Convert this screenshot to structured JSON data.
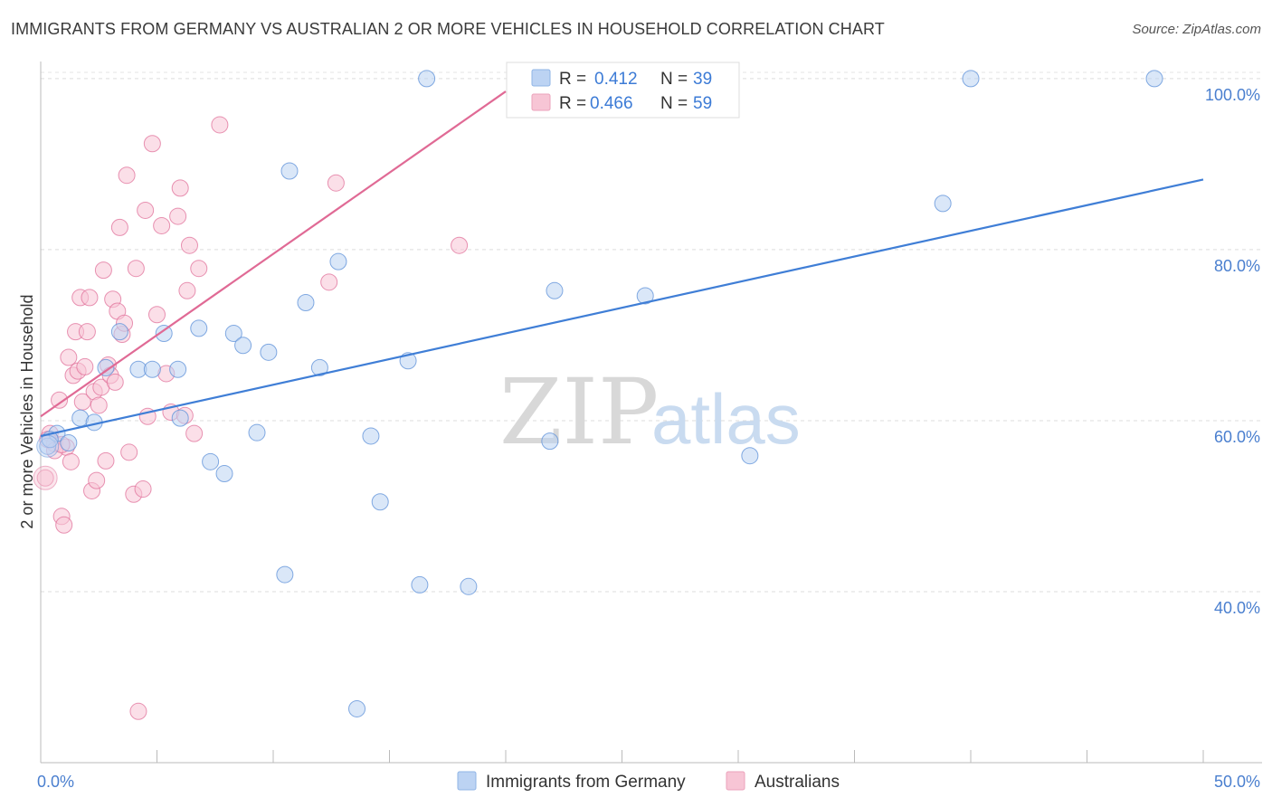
{
  "title": "IMMIGRANTS FROM GERMANY VS AUSTRALIAN 2 OR MORE VEHICLES IN HOUSEHOLD CORRELATION CHART",
  "source": "Source: ZipAtlas.com",
  "watermark": {
    "zip": "ZIP",
    "atlas": "atlas"
  },
  "colors": {
    "blue": "#5b8fd8",
    "blue_fill": "#bcd3f3",
    "pink": "#e0709a",
    "pink_fill": "#f7c5d5",
    "tick_text": "#4a7fcf"
  },
  "legend": {
    "items": [
      {
        "r_label": "R = ",
        "r_value": "0.412",
        "n_label": "N = ",
        "n_value": "39"
      },
      {
        "r_label": "R = ",
        "r_value": "0.466",
        "n_label": "N = ",
        "n_value": "59"
      }
    ]
  },
  "bottom_legend": [
    "Immigrants from Germany",
    "Australians"
  ],
  "chart_data": {
    "type": "scatter",
    "xlabel": "",
    "ylabel": "2 or more Vehicles in Household",
    "xlim": [
      0,
      50
    ],
    "ylim": [
      20,
      102
    ],
    "x_tick_labels": [
      {
        "value": 0,
        "label": "0.0%"
      },
      {
        "value": 50,
        "label": "50.0%"
      }
    ],
    "y_tick_labels": [
      {
        "value": 40,
        "label": "40.0%"
      },
      {
        "value": 60,
        "label": "60.0%"
      },
      {
        "value": 80,
        "label": "80.0%"
      },
      {
        "value": 100,
        "label": "100.0%"
      }
    ],
    "series": [
      {
        "name": "Immigrants from Germany",
        "color": "#5b8fd8",
        "r": 0.412,
        "n": 39,
        "trend": {
          "x": [
            0,
            50
          ],
          "y": [
            58.2,
            88.2
          ]
        },
        "points": [
          [
            0.3,
            57.0
          ],
          [
            0.7,
            58.5
          ],
          [
            1.2,
            57.4
          ],
          [
            1.7,
            60.3
          ],
          [
            2.3,
            59.8
          ],
          [
            2.8,
            66.2
          ],
          [
            3.4,
            70.4
          ],
          [
            4.2,
            66.0
          ],
          [
            4.8,
            66.0
          ],
          [
            5.3,
            70.2
          ],
          [
            5.9,
            66.0
          ],
          [
            6.0,
            60.3
          ],
          [
            6.8,
            70.8
          ],
          [
            7.3,
            55.2
          ],
          [
            7.9,
            53.8
          ],
          [
            8.3,
            70.2
          ],
          [
            8.7,
            68.8
          ],
          [
            9.3,
            58.6
          ],
          [
            9.8,
            68.0
          ],
          [
            10.5,
            42.0
          ],
          [
            10.7,
            89.2
          ],
          [
            11.4,
            73.8
          ],
          [
            12.0,
            66.2
          ],
          [
            12.8,
            78.6
          ],
          [
            13.6,
            26.3
          ],
          [
            14.2,
            58.2
          ],
          [
            14.6,
            50.5
          ],
          [
            15.8,
            67.0
          ],
          [
            16.3,
            40.8
          ],
          [
            16.6,
            100.0
          ],
          [
            18.4,
            40.6
          ],
          [
            21.9,
            57.6
          ],
          [
            22.1,
            75.2
          ],
          [
            26.0,
            74.6
          ],
          [
            30.5,
            55.9
          ],
          [
            38.8,
            85.4
          ],
          [
            40.0,
            100.0
          ],
          [
            47.9,
            100.0
          ],
          [
            0.4,
            57.8
          ]
        ]
      },
      {
        "name": "Australians",
        "color": "#e0709a",
        "r": 0.466,
        "n": 59,
        "trend": {
          "x": [
            0,
            20.0
          ],
          "y": [
            60.5,
            98.5
          ]
        },
        "points": [
          [
            0.2,
            53.3
          ],
          [
            0.4,
            58.5
          ],
          [
            0.6,
            57.3
          ],
          [
            0.8,
            62.4
          ],
          [
            0.9,
            48.8
          ],
          [
            1.0,
            47.8
          ],
          [
            1.1,
            56.9
          ],
          [
            1.2,
            67.4
          ],
          [
            1.3,
            55.2
          ],
          [
            1.4,
            65.3
          ],
          [
            1.5,
            70.4
          ],
          [
            1.6,
            65.8
          ],
          [
            1.7,
            74.4
          ],
          [
            1.8,
            62.2
          ],
          [
            1.9,
            66.3
          ],
          [
            2.0,
            70.4
          ],
          [
            2.1,
            74.4
          ],
          [
            2.2,
            51.8
          ],
          [
            2.3,
            63.4
          ],
          [
            2.4,
            53.0
          ],
          [
            2.5,
            61.8
          ],
          [
            2.6,
            63.9
          ],
          [
            2.7,
            77.6
          ],
          [
            2.8,
            55.3
          ],
          [
            2.9,
            66.5
          ],
          [
            3.0,
            65.3
          ],
          [
            3.1,
            74.2
          ],
          [
            3.2,
            64.5
          ],
          [
            3.3,
            72.8
          ],
          [
            3.4,
            82.6
          ],
          [
            3.5,
            70.1
          ],
          [
            3.6,
            71.4
          ],
          [
            3.7,
            88.7
          ],
          [
            3.8,
            56.3
          ],
          [
            4.0,
            51.4
          ],
          [
            4.1,
            77.8
          ],
          [
            4.2,
            26.0
          ],
          [
            4.4,
            52.0
          ],
          [
            4.5,
            84.6
          ],
          [
            4.6,
            60.5
          ],
          [
            4.8,
            92.4
          ],
          [
            5.0,
            72.4
          ],
          [
            5.2,
            82.8
          ],
          [
            5.4,
            65.5
          ],
          [
            5.6,
            61.0
          ],
          [
            5.9,
            83.9
          ],
          [
            6.0,
            87.2
          ],
          [
            6.2,
            60.6
          ],
          [
            6.3,
            75.2
          ],
          [
            6.4,
            80.5
          ],
          [
            6.6,
            58.5
          ],
          [
            6.8,
            77.8
          ],
          [
            7.7,
            94.6
          ],
          [
            12.4,
            76.2
          ],
          [
            12.7,
            87.8
          ],
          [
            18.0,
            80.5
          ],
          [
            0.3,
            57.8
          ],
          [
            0.6,
            56.5
          ],
          [
            0.9,
            57.2
          ]
        ]
      }
    ]
  }
}
